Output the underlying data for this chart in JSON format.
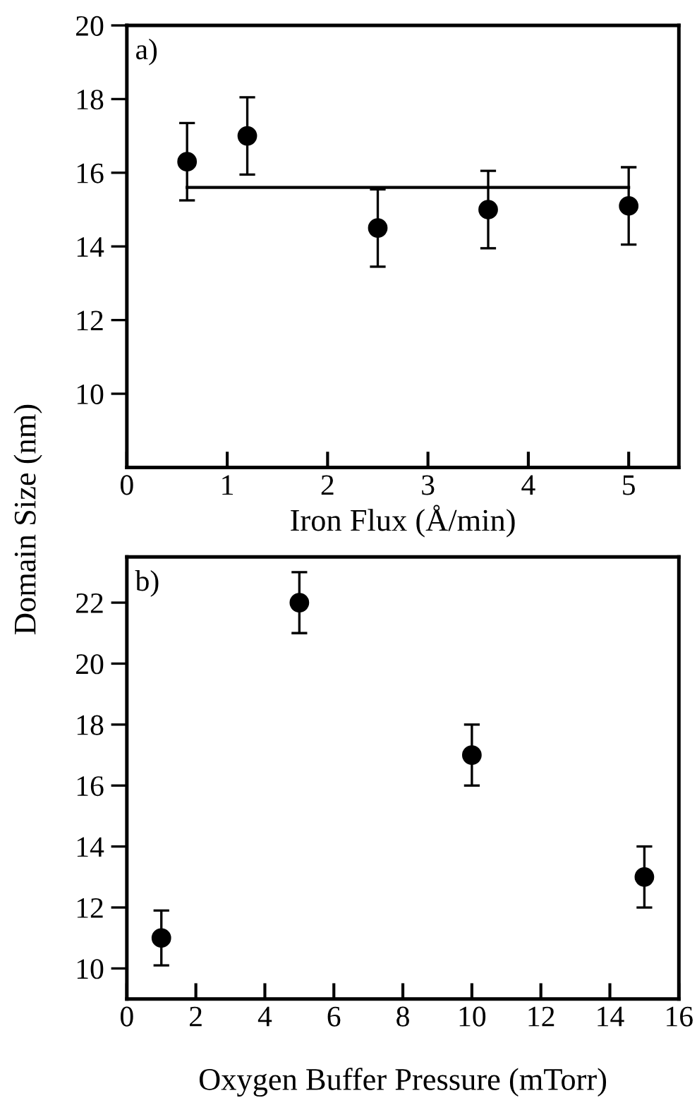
{
  "chart_data": [
    {
      "type": "scatter",
      "xlabel": "Iron Flux (Å/min)",
      "ylabel": "Domain Size (nm)",
      "annotations": [
        "a)"
      ],
      "xlim": [
        0,
        5.5
      ],
      "xticks": [
        0,
        1,
        2,
        3,
        4,
        5
      ],
      "ylim": [
        8,
        20
      ],
      "yticks": [
        10,
        12,
        14,
        16,
        18,
        20
      ],
      "grid": false,
      "legend": false,
      "marker": "circle",
      "series": [
        {
          "color": "#000000",
          "x": [
            0.6,
            1.2,
            2.5,
            3.6,
            5.0
          ],
          "values": [
            16.3,
            17.0,
            14.5,
            15.0,
            15.1
          ],
          "errors": [
            1.05,
            1.05,
            1.05,
            1.05,
            1.05
          ]
        },
        {
          "type": "line",
          "color": "#000000",
          "x": [
            0.6,
            5.0
          ],
          "values": [
            15.6,
            15.6
          ],
          "marker": "none",
          "line_style": "solid"
        }
      ]
    },
    {
      "type": "scatter",
      "xlabel": "Oxygen Buffer Pressure (mTorr)",
      "annotations": [
        "b)"
      ],
      "xlim": [
        0,
        16
      ],
      "xticks": [
        0,
        2,
        4,
        6,
        8,
        10,
        12,
        14,
        16
      ],
      "ylim": [
        9,
        23.5
      ],
      "yticks": [
        10,
        12,
        14,
        16,
        18,
        20,
        22
      ],
      "grid": false,
      "legend": false,
      "marker": "circle",
      "series": [
        {
          "color": "#000000",
          "x": [
            1,
            5,
            10,
            15
          ],
          "values": [
            11,
            22,
            17,
            13
          ],
          "errors": [
            0.9,
            1,
            1,
            1
          ]
        }
      ]
    }
  ]
}
